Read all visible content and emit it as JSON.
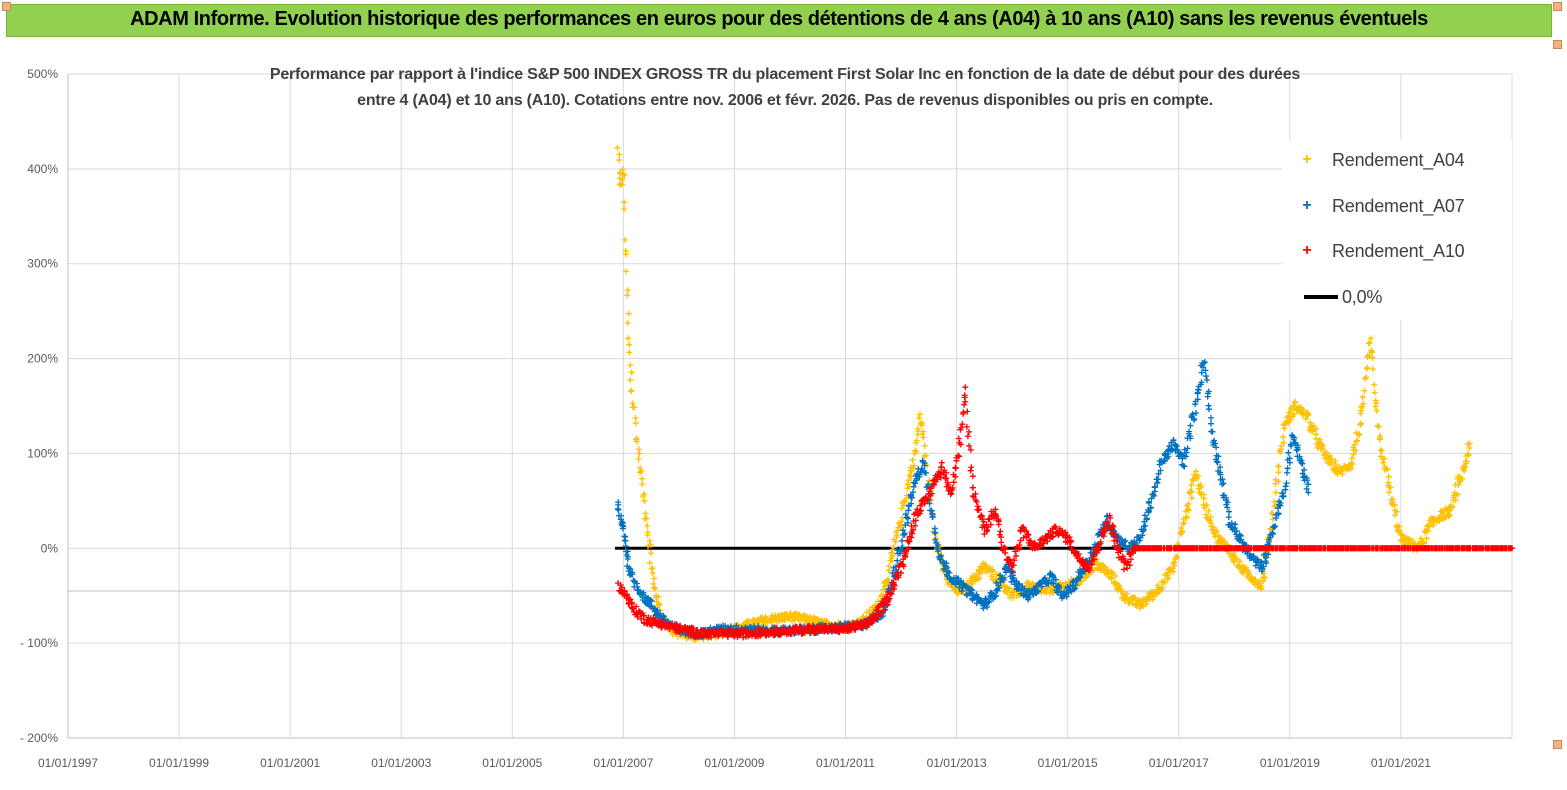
{
  "header": {
    "title": "ADAM Informe. Evolution historique des performances en euros pour des détentions de 4 ans (A04) à 10 ans (A10) sans les revenus éventuels"
  },
  "chart_data": {
    "type": "scatter",
    "title_line1": "Performance par rapport à l'indice S&P 500 INDEX GROSS TR  du placement First Solar Inc en fonction de la date de début pour des durées",
    "title_line2": "entre 4 (A04) et 10 ans (A10). Cotations entre nov. 2006 et févr. 2026. Pas de revenus disponibles ou pris en compte.",
    "y_ticks": [
      "500%",
      "400%",
      "300%",
      "200%",
      "100%",
      "0%",
      "- 100%",
      "- 200%"
    ],
    "ylim": [
      -200,
      500
    ],
    "x_ticks": [
      "01/01/1997",
      "01/01/1999",
      "01/01/2001",
      "01/01/2003",
      "01/01/2005",
      "01/01/2007",
      "01/01/2009",
      "01/01/2011",
      "01/01/2013",
      "01/01/2015",
      "01/01/2017",
      "01/01/2019",
      "01/01/2021"
    ],
    "xlim": [
      1997.0,
      2023.0
    ],
    "grid": true,
    "legend_position": "top-right",
    "series": [
      {
        "name": "Rendement_A04",
        "color": "#ffc000",
        "marker": "+",
        "points": [
          [
            2006.9,
            420
          ],
          [
            2006.95,
            380
          ],
          [
            2007.0,
            400
          ],
          [
            2007.05,
            300
          ],
          [
            2007.1,
            220
          ],
          [
            2007.15,
            170
          ],
          [
            2007.25,
            110
          ],
          [
            2007.35,
            60
          ],
          [
            2007.45,
            10
          ],
          [
            2007.55,
            -40
          ],
          [
            2007.7,
            -75
          ],
          [
            2007.9,
            -88
          ],
          [
            2008.3,
            -93
          ],
          [
            2008.7,
            -90
          ],
          [
            2009.0,
            -85
          ],
          [
            2009.3,
            -80
          ],
          [
            2009.6,
            -75
          ],
          [
            2010.0,
            -72
          ],
          [
            2010.3,
            -75
          ],
          [
            2010.6,
            -80
          ],
          [
            2011.0,
            -82
          ],
          [
            2011.3,
            -78
          ],
          [
            2011.6,
            -60
          ],
          [
            2011.8,
            -20
          ],
          [
            2011.95,
            20
          ],
          [
            2012.1,
            60
          ],
          [
            2012.25,
            100
          ],
          [
            2012.35,
            140
          ],
          [
            2012.45,
            90
          ],
          [
            2012.6,
            20
          ],
          [
            2012.8,
            -30
          ],
          [
            2013.0,
            -45
          ],
          [
            2013.2,
            -40
          ],
          [
            2013.5,
            -20
          ],
          [
            2013.8,
            -35
          ],
          [
            2014.0,
            -50
          ],
          [
            2014.3,
            -40
          ],
          [
            2014.6,
            -45
          ],
          [
            2014.9,
            -40
          ],
          [
            2015.2,
            -35
          ],
          [
            2015.5,
            -15
          ],
          [
            2015.8,
            -30
          ],
          [
            2016.0,
            -50
          ],
          [
            2016.3,
            -60
          ],
          [
            2016.6,
            -45
          ],
          [
            2016.9,
            -20
          ],
          [
            2017.1,
            30
          ],
          [
            2017.3,
            80
          ],
          [
            2017.5,
            40
          ],
          [
            2017.7,
            10
          ],
          [
            2017.9,
            0
          ],
          [
            2018.1,
            -20
          ],
          [
            2018.3,
            -30
          ],
          [
            2018.5,
            -40
          ],
          [
            2018.7,
            40
          ],
          [
            2018.9,
            130
          ],
          [
            2019.1,
            150
          ],
          [
            2019.3,
            140
          ],
          [
            2019.6,
            100
          ],
          [
            2019.9,
            80
          ],
          [
            2020.1,
            90
          ],
          [
            2020.3,
            140
          ],
          [
            2020.45,
            220
          ],
          [
            2020.6,
            120
          ],
          [
            2020.8,
            60
          ],
          [
            2021.0,
            10
          ],
          [
            2021.3,
            0
          ],
          [
            2021.6,
            30
          ],
          [
            2021.9,
            40
          ],
          [
            2022.1,
            80
          ],
          [
            2022.25,
            110
          ]
        ]
      },
      {
        "name": "Rendement_A07",
        "color": "#0070c0",
        "marker": "+",
        "points": [
          [
            2006.9,
            45
          ],
          [
            2006.95,
            30
          ],
          [
            2007.0,
            20
          ],
          [
            2007.05,
            0
          ],
          [
            2007.1,
            -20
          ],
          [
            2007.2,
            -35
          ],
          [
            2007.35,
            -50
          ],
          [
            2007.5,
            -60
          ],
          [
            2007.7,
            -75
          ],
          [
            2008.0,
            -87
          ],
          [
            2008.4,
            -90
          ],
          [
            2008.8,
            -85
          ],
          [
            2009.2,
            -85
          ],
          [
            2009.6,
            -87
          ],
          [
            2010.0,
            -87
          ],
          [
            2010.5,
            -85
          ],
          [
            2011.0,
            -83
          ],
          [
            2011.4,
            -80
          ],
          [
            2011.7,
            -65
          ],
          [
            2011.9,
            -20
          ],
          [
            2012.1,
            30
          ],
          [
            2012.25,
            70
          ],
          [
            2012.4,
            90
          ],
          [
            2012.55,
            40
          ],
          [
            2012.7,
            -10
          ],
          [
            2012.9,
            -30
          ],
          [
            2013.1,
            -40
          ],
          [
            2013.3,
            -50
          ],
          [
            2013.5,
            -60
          ],
          [
            2013.7,
            -45
          ],
          [
            2013.9,
            -20
          ],
          [
            2014.1,
            -40
          ],
          [
            2014.3,
            -50
          ],
          [
            2014.5,
            -40
          ],
          [
            2014.7,
            -30
          ],
          [
            2014.9,
            -50
          ],
          [
            2015.1,
            -40
          ],
          [
            2015.3,
            -20
          ],
          [
            2015.5,
            0
          ],
          [
            2015.7,
            30
          ],
          [
            2015.9,
            10
          ],
          [
            2016.1,
            0
          ],
          [
            2016.3,
            10
          ],
          [
            2016.5,
            50
          ],
          [
            2016.7,
            90
          ],
          [
            2016.9,
            110
          ],
          [
            2017.1,
            90
          ],
          [
            2017.3,
            150
          ],
          [
            2017.45,
            200
          ],
          [
            2017.6,
            120
          ],
          [
            2017.75,
            80
          ],
          [
            2017.9,
            30
          ],
          [
            2018.1,
            10
          ],
          [
            2018.3,
            -10
          ],
          [
            2018.5,
            -20
          ],
          [
            2018.7,
            20
          ],
          [
            2018.9,
            60
          ],
          [
            2019.05,
            120
          ],
          [
            2019.2,
            90
          ],
          [
            2019.35,
            60
          ]
        ]
      },
      {
        "name": "Rendement_A10",
        "color": "#ff0000",
        "marker": "+",
        "points": [
          [
            2006.9,
            -40
          ],
          [
            2007.0,
            -45
          ],
          [
            2007.1,
            -55
          ],
          [
            2007.2,
            -65
          ],
          [
            2007.4,
            -75
          ],
          [
            2007.7,
            -80
          ],
          [
            2008.0,
            -85
          ],
          [
            2008.4,
            -90
          ],
          [
            2008.8,
            -90
          ],
          [
            2009.2,
            -90
          ],
          [
            2009.6,
            -88
          ],
          [
            2010.0,
            -87
          ],
          [
            2010.5,
            -85
          ],
          [
            2011.0,
            -85
          ],
          [
            2011.4,
            -80
          ],
          [
            2011.7,
            -60
          ],
          [
            2011.85,
            -40
          ],
          [
            2012.0,
            -20
          ],
          [
            2012.15,
            10
          ],
          [
            2012.3,
            40
          ],
          [
            2012.45,
            50
          ],
          [
            2012.6,
            70
          ],
          [
            2012.75,
            85
          ],
          [
            2012.9,
            60
          ],
          [
            2013.05,
            110
          ],
          [
            2013.15,
            160
          ],
          [
            2013.3,
            60
          ],
          [
            2013.5,
            20
          ],
          [
            2013.7,
            40
          ],
          [
            2013.85,
            0
          ],
          [
            2014.0,
            -20
          ],
          [
            2014.2,
            20
          ],
          [
            2014.4,
            0
          ],
          [
            2014.6,
            10
          ],
          [
            2014.8,
            20
          ],
          [
            2015.0,
            10
          ],
          [
            2015.2,
            -10
          ],
          [
            2015.4,
            -20
          ],
          [
            2015.6,
            10
          ],
          [
            2015.75,
            30
          ],
          [
            2015.9,
            0
          ],
          [
            2016.05,
            -20
          ],
          [
            2016.2,
            0
          ],
          [
            2016.5,
            0
          ],
          [
            2017.0,
            0
          ],
          [
            2017.5,
            0
          ],
          [
            2018.0,
            0
          ],
          [
            2018.5,
            0
          ],
          [
            2019.0,
            0
          ],
          [
            2019.5,
            0
          ],
          [
            2020.0,
            0
          ],
          [
            2020.5,
            0
          ],
          [
            2021.0,
            0
          ],
          [
            2021.5,
            0
          ],
          [
            2022.0,
            0
          ],
          [
            2022.5,
            0
          ],
          [
            2023.0,
            0
          ]
        ]
      }
    ],
    "reference_line": {
      "name": "0,0%",
      "color": "#000000",
      "y": 0,
      "x_range": [
        2006.85,
        2016.2
      ]
    }
  }
}
